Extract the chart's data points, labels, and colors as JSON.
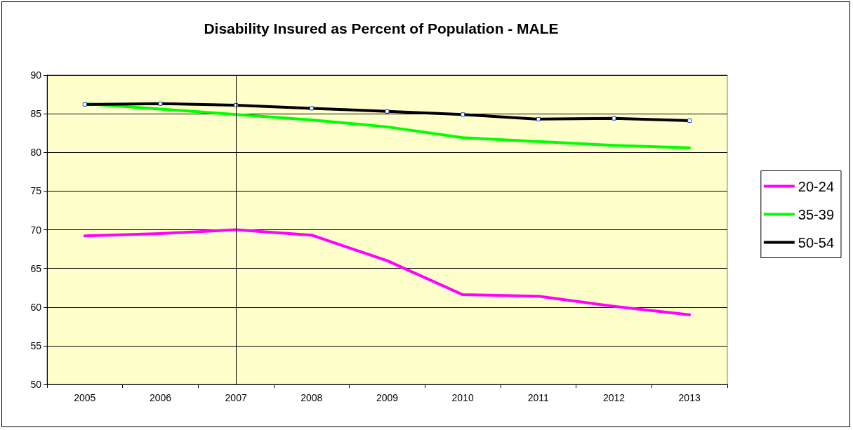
{
  "chart_data": {
    "type": "line",
    "title": "Disability Insured as Percent of Population - MALE",
    "categories": [
      "2005",
      "2006",
      "2007",
      "2008",
      "2009",
      "2010",
      "2011",
      "2012",
      "2013"
    ],
    "series": [
      {
        "name": "20-24",
        "color": "#ff00ff",
        "values": [
          69.2,
          69.5,
          70.0,
          69.3,
          66.0,
          61.6,
          61.4,
          60.1,
          59.0
        ]
      },
      {
        "name": "35-39",
        "color": "#00ff00",
        "values": [
          86.3,
          85.6,
          84.9,
          84.2,
          83.3,
          81.9,
          81.4,
          80.9,
          80.6
        ]
      },
      {
        "name": "50-54",
        "color": "#000000",
        "marker": "square",
        "values": [
          86.2,
          86.3,
          86.1,
          85.7,
          85.3,
          84.9,
          84.3,
          84.4,
          84.1
        ]
      }
    ],
    "ylim": [
      50,
      90
    ],
    "yticks": [
      50,
      55,
      60,
      65,
      70,
      75,
      80,
      85,
      90
    ],
    "grid": "y",
    "legend": "right",
    "marker": "none",
    "line_style": "solid",
    "ref_lines": [
      {
        "axis": "x",
        "value": "2007",
        "color": "#000000"
      }
    ]
  }
}
